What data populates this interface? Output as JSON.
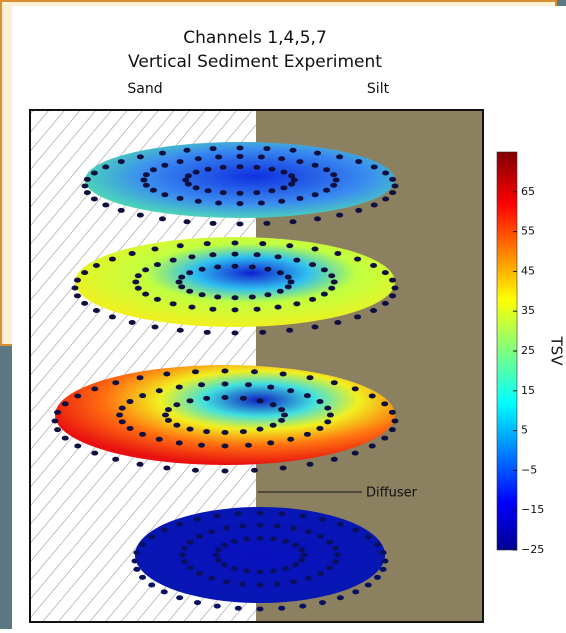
{
  "figure": {
    "title_lines": [
      "Channels 1,4,5,7",
      "Vertical Sediment Experiment"
    ],
    "left_label": "Sand",
    "right_label": "Silt",
    "annotation": "Diffuser",
    "colorbar": {
      "label": "TSV",
      "range": [
        -25,
        75
      ],
      "ticks": [
        65,
        55,
        45,
        35,
        25,
        15,
        5,
        {
          "value": -5,
          "label": "−5"
        },
        {
          "value": -15,
          "label": "−15"
        },
        {
          "value": -25,
          "label": "−25"
        }
      ]
    }
  }
}
